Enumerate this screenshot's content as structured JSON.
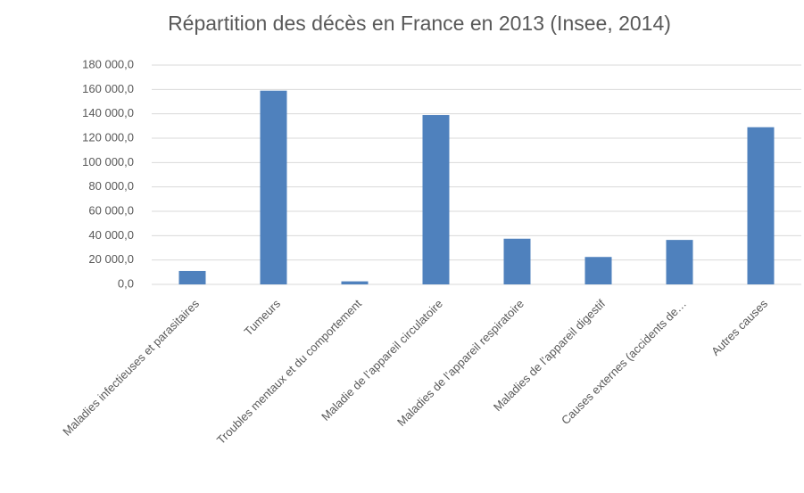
{
  "chart_data": {
    "type": "bar",
    "title": "Répartition des décès en France en 2013 (Insee, 2014)",
    "categories": [
      "Maladies infectieuses et parasitaires",
      "Tumeurs",
      "Troubles mentaux et du comportement",
      "Maladie de l’appareil circulatoire",
      "Maladies de l’appareil respiratoire",
      "Maladies de l’appareil digestif",
      "Causes externes (accidents de…",
      "Autres causes"
    ],
    "values": [
      11000,
      159000,
      2500,
      139000,
      37500,
      22500,
      36500,
      129000
    ],
    "color": "#4f81bd",
    "ylim": [
      0,
      180000
    ],
    "yticks": [
      {
        "value": 0,
        "label": "0,0"
      },
      {
        "value": 20000,
        "label": "20 000,0"
      },
      {
        "value": 40000,
        "label": "40 000,0"
      },
      {
        "value": 60000,
        "label": "60 000,0"
      },
      {
        "value": 80000,
        "label": "80 000,0"
      },
      {
        "value": 100000,
        "label": "100 000,0"
      },
      {
        "value": 120000,
        "label": "120 000,0"
      },
      {
        "value": 140000,
        "label": "140 000,0"
      },
      {
        "value": 160000,
        "label": "160 000,0"
      },
      {
        "value": 180000,
        "label": "180 000,0"
      }
    ],
    "grid": true
  }
}
